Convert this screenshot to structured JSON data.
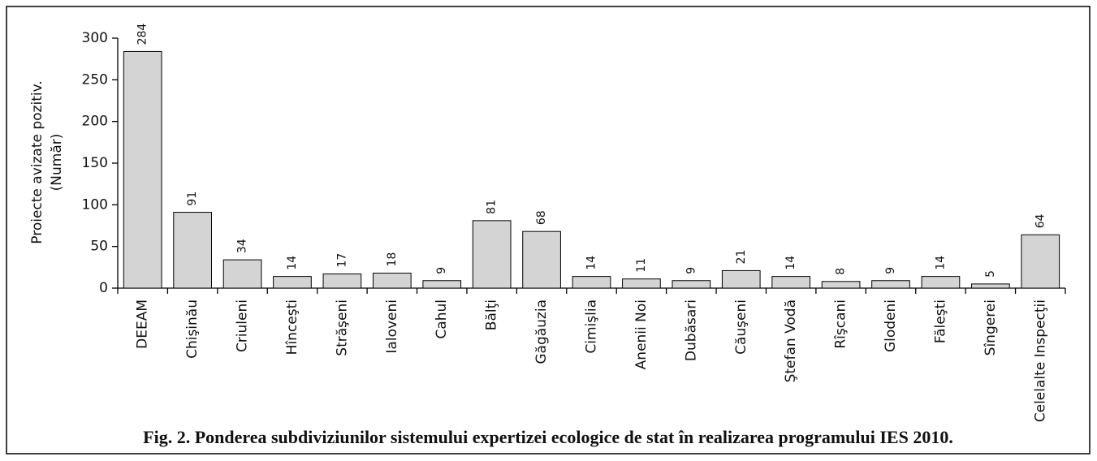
{
  "chart_data": {
    "type": "bar",
    "title": "Fig. 2. Ponderea subdiviziunilor sistemului expertizei ecologice de stat în realizarea programului IES 2010.",
    "ylabel": [
      "Proiecte avizate pozitiv.",
      "(Număr)"
    ],
    "categories": [
      "DEEAM",
      "Chişinău",
      "Criuleni",
      "Hînceşti",
      "Străşeni",
      "Ialoveni",
      "Cahul",
      "Bălţi",
      "Găgăuzia",
      "Cimişlia",
      "Anenii Noi",
      "Dubăsari",
      "Căuşeni",
      "Ştefan Vodă",
      "Rîşcani",
      "Glodeni",
      "Făleşti",
      "Sîngerei",
      "Celelalte Inspecţii"
    ],
    "values": [
      284,
      91,
      34,
      14,
      17,
      18,
      9,
      81,
      68,
      14,
      11,
      9,
      21,
      14,
      8,
      9,
      14,
      5,
      64
    ],
    "color": "#d4d4d4",
    "ylim": [
      0,
      300
    ],
    "yticks": [
      0,
      50,
      100,
      150,
      200,
      250,
      300
    ],
    "grid": false
  }
}
